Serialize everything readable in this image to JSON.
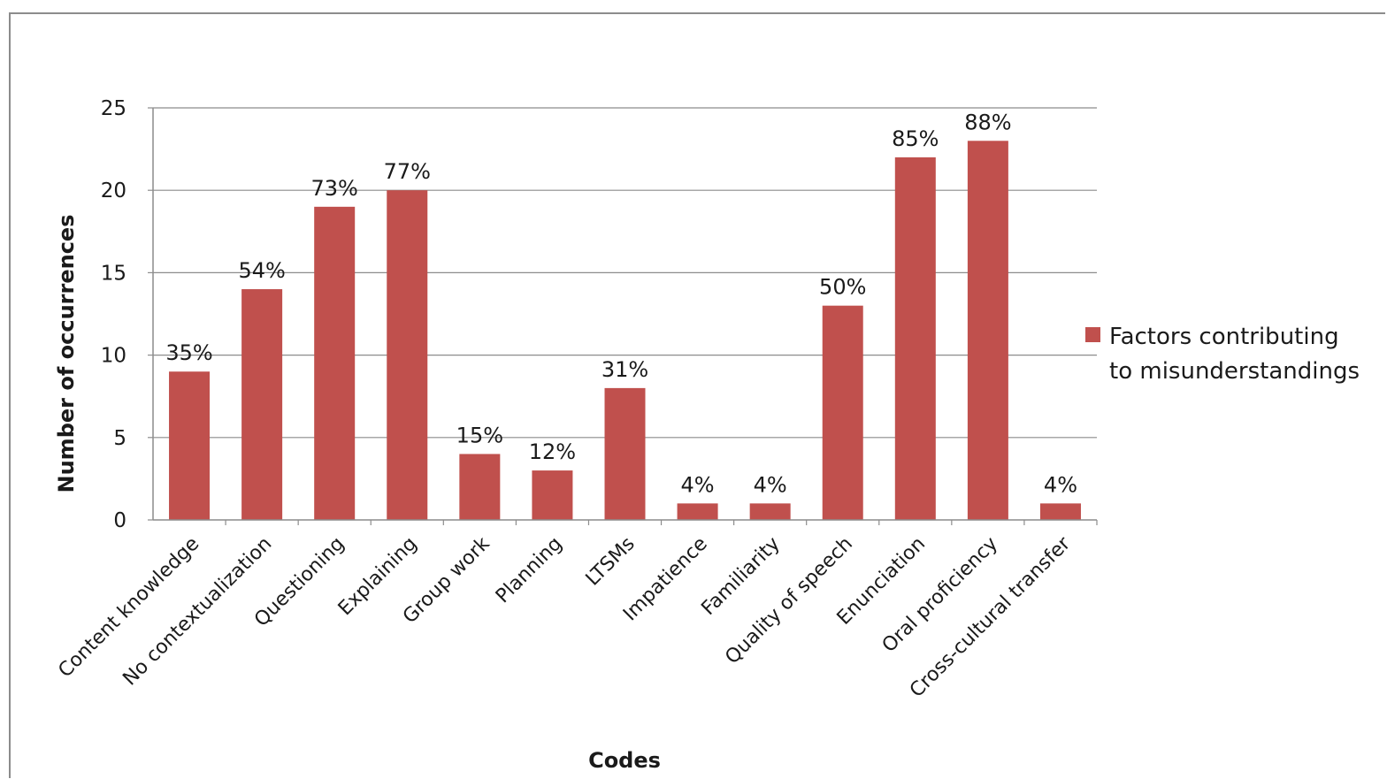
{
  "chart_data": {
    "type": "bar",
    "categories": [
      "Content knowledge",
      "No contextualization",
      "Questioning",
      "Explaining",
      "Group work",
      "Planning",
      "LTSMs",
      "Impatience",
      "Familiarity",
      "Quality of speech",
      "Enunciation",
      "Oral proficiency",
      "Cross-cultural transfer"
    ],
    "series": [
      {
        "name": "Factors contributing to misunderstandings",
        "legend_lines": [
          "Factors contributing",
          "to misunderstandings"
        ],
        "values": [
          9,
          14,
          19,
          20,
          4,
          3,
          8,
          1,
          1,
          13,
          22,
          23,
          1
        ],
        "labels": [
          "35%",
          "54%",
          "73%",
          "77%",
          "15%",
          "12%",
          "31%",
          "4%",
          "4%",
          "50%",
          "85%",
          "88%",
          "4%"
        ],
        "color": "#c0504d"
      }
    ],
    "xlabel": "Codes",
    "ylabel": "Number  of  occurrences",
    "ylim": [
      0,
      25
    ],
    "yticks": [
      0,
      5,
      10,
      15,
      20,
      25
    ],
    "grid": true,
    "legend_position": "right"
  }
}
